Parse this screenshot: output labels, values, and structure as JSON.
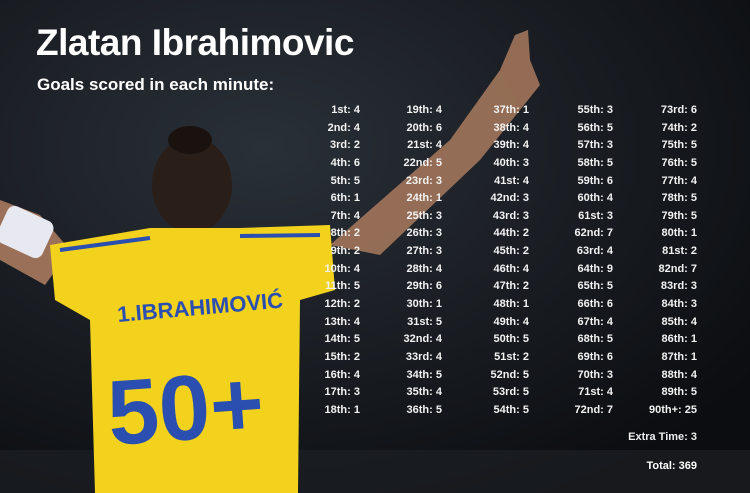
{
  "title": "Zlatan Ibrahimovic",
  "subtitle": "Goals scored in each minute:",
  "photo": {
    "shirt_name": "1.IBRAHIMOVIĆ",
    "shirt_number": "50+",
    "shirt_color": "#f2d21c",
    "number_color": "#2a4fb0"
  },
  "columns": [
    [
      [
        "1st",
        4
      ],
      [
        "2nd",
        4
      ],
      [
        "3rd",
        2
      ],
      [
        "4th",
        6
      ],
      [
        "5th",
        5
      ],
      [
        "6th",
        1
      ],
      [
        "7th",
        4
      ],
      [
        "8th",
        2
      ],
      [
        "9th",
        2
      ],
      [
        "10th",
        4
      ],
      [
        "11th",
        5
      ],
      [
        "12th",
        2
      ],
      [
        "13th",
        4
      ],
      [
        "14th",
        5
      ],
      [
        "15th",
        2
      ],
      [
        "16th",
        4
      ],
      [
        "17th",
        3
      ],
      [
        "18th",
        1
      ]
    ],
    [
      [
        "19th",
        4
      ],
      [
        "20th",
        6
      ],
      [
        "21st",
        4
      ],
      [
        "22nd",
        5
      ],
      [
        "23rd",
        3
      ],
      [
        "24th",
        1
      ],
      [
        "25th",
        3
      ],
      [
        "26th",
        3
      ],
      [
        "27th",
        3
      ],
      [
        "28th",
        4
      ],
      [
        "29th",
        6
      ],
      [
        "30th",
        1
      ],
      [
        "31st",
        5
      ],
      [
        "32nd",
        4
      ],
      [
        "33rd",
        4
      ],
      [
        "34th",
        5
      ],
      [
        "35th",
        4
      ],
      [
        "36th",
        5
      ]
    ],
    [
      [
        "37th",
        1
      ],
      [
        "38th",
        4
      ],
      [
        "39th",
        4
      ],
      [
        "40th",
        3
      ],
      [
        "41st",
        4
      ],
      [
        "42nd",
        3
      ],
      [
        "43rd",
        3
      ],
      [
        "44th",
        2
      ],
      [
        "45th",
        2
      ],
      [
        "46th",
        4
      ],
      [
        "47th",
        2
      ],
      [
        "48th",
        1
      ],
      [
        "49th",
        4
      ],
      [
        "50th",
        5
      ],
      [
        "51st",
        2
      ],
      [
        "52nd",
        5
      ],
      [
        "53rd",
        5
      ],
      [
        "54th",
        5
      ]
    ],
    [
      [
        "55th",
        3
      ],
      [
        "56th",
        5
      ],
      [
        "57th",
        3
      ],
      [
        "58th",
        5
      ],
      [
        "59th",
        6
      ],
      [
        "60th",
        4
      ],
      [
        "61st",
        3
      ],
      [
        "62nd",
        7
      ],
      [
        "63rd",
        4
      ],
      [
        "64th",
        9
      ],
      [
        "65th",
        5
      ],
      [
        "66th",
        6
      ],
      [
        "67th",
        4
      ],
      [
        "68th",
        5
      ],
      [
        "69th",
        6
      ],
      [
        "70th",
        3
      ],
      [
        "71st",
        4
      ],
      [
        "72nd",
        7
      ]
    ],
    [
      [
        "73rd",
        6
      ],
      [
        "74th",
        2
      ],
      [
        "75th",
        5
      ],
      [
        "76th",
        5
      ],
      [
        "77th",
        4
      ],
      [
        "78th",
        5
      ],
      [
        "79th",
        5
      ],
      [
        "80th",
        1
      ],
      [
        "81st",
        2
      ],
      [
        "82nd",
        7
      ],
      [
        "83rd",
        3
      ],
      [
        "84th",
        3
      ],
      [
        "85th",
        4
      ],
      [
        "86th",
        1
      ],
      [
        "87th",
        1
      ],
      [
        "88th",
        4
      ],
      [
        "89th",
        5
      ],
      [
        "90th+",
        25
      ]
    ]
  ],
  "extra_time": "Extra Time: 3",
  "total": "Total: 369"
}
